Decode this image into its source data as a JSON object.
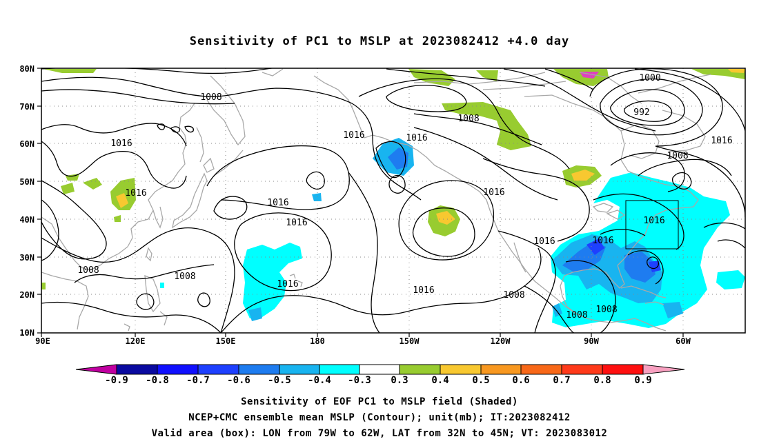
{
  "title": "Sensitivity of PC1 to MSLP at 2023082412 +4.0 day",
  "axes": {
    "lat_labels": [
      "80N",
      "70N",
      "60N",
      "50N",
      "40N",
      "30N",
      "20N",
      "10N"
    ],
    "lon_labels": [
      "90E",
      "120E",
      "150E",
      "180",
      "150W",
      "120W",
      "90W",
      "60W"
    ]
  },
  "contour_labels": [
    {
      "text": "1008",
      "name": "contour-label-1008-a"
    },
    {
      "text": "1016",
      "name": "contour-label-1016-a"
    },
    {
      "text": "1016",
      "name": "contour-label-1016-b"
    },
    {
      "text": "1008",
      "name": "contour-label-1008-b"
    },
    {
      "text": "1008",
      "name": "contour-label-1008-c"
    },
    {
      "text": "1016",
      "name": "contour-label-1016-c"
    },
    {
      "text": "1016",
      "name": "contour-label-1016-d"
    },
    {
      "text": "1016",
      "name": "contour-label-1016-e"
    },
    {
      "text": "1016",
      "name": "contour-label-1016-f"
    },
    {
      "text": "1008",
      "name": "contour-label-1008-d"
    },
    {
      "text": "1016",
      "name": "contour-label-1016-g"
    },
    {
      "text": "1016",
      "name": "contour-label-1016-h"
    },
    {
      "text": "1000",
      "name": "contour-label-1000"
    },
    {
      "text": "992",
      "name": "contour-label-992"
    },
    {
      "text": "1016",
      "name": "contour-label-1016-i"
    },
    {
      "text": "1008",
      "name": "contour-label-1008-e"
    },
    {
      "text": "1016",
      "name": "contour-label-1016-j"
    },
    {
      "text": "1016",
      "name": "contour-label-1016-k"
    },
    {
      "text": "1016",
      "name": "contour-label-1016-l"
    },
    {
      "text": "1008",
      "name": "contour-label-1008-f"
    },
    {
      "text": "1008",
      "name": "contour-label-1008-g"
    },
    {
      "text": "1008",
      "name": "contour-label-1008-h"
    },
    {
      "text": "1016",
      "name": "contour-label-1016-m"
    }
  ],
  "colorbar": {
    "labels": [
      "-0.9",
      "-0.8",
      "-0.7",
      "-0.6",
      "-0.5",
      "-0.4",
      "-0.3",
      "0.3",
      "0.4",
      "0.5",
      "0.6",
      "0.7",
      "0.8",
      "0.9"
    ],
    "colors": [
      "#b000b0",
      "#0a0aa0",
      "#1010ff",
      "#1e40ff",
      "#1e7cf0",
      "#18b4f0",
      "#00ffff",
      "#ffffff",
      "#98cc30",
      "#f8c830",
      "#f89820",
      "#f86818",
      "#ff3a1a",
      "#ff1010",
      "#f8a0c0"
    ]
  },
  "colors": {
    "coast": "#a8a8a8",
    "contour": "#000000",
    "grid": "#888888"
  },
  "captions": {
    "line1": "Sensitivity of EOF PC1 to MSLP field (Shaded)",
    "line2": "NCEP+CMC ensemble mean MSLP (Contour); unit(mb); IT:2023082412",
    "line3": "Valid area (box): LON from 79W to 62W, LAT from 32N to 45N; VT: 2023083012"
  }
}
